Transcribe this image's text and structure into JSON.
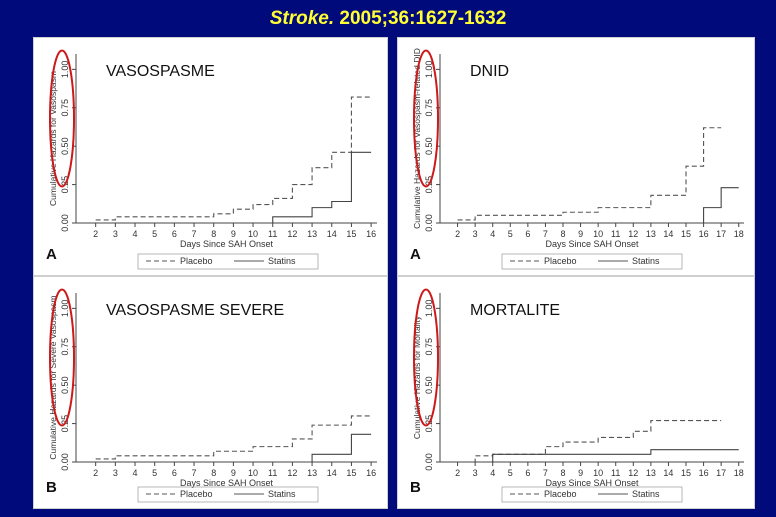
{
  "slide": {
    "citation_journal": "Stroke.",
    "citation_rest": " 2005;36:1627-1632",
    "title_color": "#ffff33",
    "background_color": "#000a7a",
    "highlight_color": "#cc1a1a"
  },
  "chart_data": [
    {
      "type": "line",
      "step": true,
      "overlay_label": "VASOSPASME",
      "panel_letter": "A",
      "xlabel": "Days Since SAH Onset",
      "ylabel": "Cumulative Hazards for Vasospasm",
      "xticks": [
        2,
        3,
        4,
        5,
        6,
        7,
        8,
        9,
        10,
        11,
        12,
        13,
        14,
        15,
        16
      ],
      "yticks": [
        "0.00",
        "0.25",
        "0.50",
        "0.75",
        "1.00"
      ],
      "xlim": [
        1,
        16.3
      ],
      "ylim": [
        0,
        1.1
      ],
      "legend_position": "bottom",
      "series": [
        {
          "name": "Placebo",
          "style": "dashed",
          "x": [
            2,
            3,
            8,
            9,
            10,
            11,
            12,
            13,
            14,
            15,
            16
          ],
          "y": [
            0.02,
            0.04,
            0.06,
            0.09,
            0.12,
            0.16,
            0.25,
            0.36,
            0.46,
            0.82,
            0.82
          ]
        },
        {
          "name": "Statins",
          "style": "solid",
          "x": [
            2,
            11,
            13,
            14,
            15,
            16
          ],
          "y": [
            0.0,
            0.04,
            0.1,
            0.14,
            0.46,
            0.46
          ]
        }
      ]
    },
    {
      "type": "line",
      "step": true,
      "overlay_label": "DNID",
      "panel_letter": "A",
      "xlabel": "Days Since SAH Onset",
      "ylabel": "Cumulative Hazards for Vasospasm-related DID",
      "xticks": [
        2,
        3,
        4,
        5,
        6,
        7,
        8,
        9,
        10,
        11,
        12,
        13,
        14,
        15,
        16,
        17,
        18
      ],
      "yticks": [
        "0.00",
        "0.25",
        "0.50",
        "0.75",
        "1.00"
      ],
      "xlim": [
        1,
        18.3
      ],
      "ylim": [
        0,
        1.1
      ],
      "legend_position": "bottom",
      "series": [
        {
          "name": "Placebo",
          "style": "dashed",
          "x": [
            2,
            3,
            8,
            10,
            13,
            15,
            16,
            17
          ],
          "y": [
            0.02,
            0.05,
            0.07,
            0.1,
            0.18,
            0.37,
            0.62,
            0.62
          ]
        },
        {
          "name": "Statins",
          "style": "solid",
          "x": [
            2,
            16,
            17,
            18
          ],
          "y": [
            0.0,
            0.1,
            0.23,
            0.23
          ]
        }
      ]
    },
    {
      "type": "line",
      "step": true,
      "overlay_label": "VASOSPASME SEVERE",
      "panel_letter": "B",
      "xlabel": "Days Since SAH Onset",
      "ylabel": "Cumulative Hazards for Severe Vasospasm",
      "xticks": [
        2,
        3,
        4,
        5,
        6,
        7,
        8,
        9,
        10,
        11,
        12,
        13,
        14,
        15,
        16
      ],
      "yticks": [
        "0.00",
        "0.25",
        "0.50",
        "0.75",
        "1.00"
      ],
      "xlim": [
        1,
        16.3
      ],
      "ylim": [
        0,
        1.1
      ],
      "legend_position": "bottom",
      "series": [
        {
          "name": "Placebo",
          "style": "dashed",
          "x": [
            2,
            3,
            8,
            10,
            12,
            13,
            15,
            16
          ],
          "y": [
            0.02,
            0.04,
            0.07,
            0.1,
            0.15,
            0.24,
            0.3,
            0.3
          ]
        },
        {
          "name": "Statins",
          "style": "solid",
          "x": [
            2,
            13,
            15,
            16
          ],
          "y": [
            0.0,
            0.05,
            0.18,
            0.18
          ]
        }
      ]
    },
    {
      "type": "line",
      "step": true,
      "overlay_label": "MORTALITE",
      "panel_letter": "B",
      "xlabel": "Days Since SAH Onset",
      "ylabel": "Cumulative Hazards for Mortality",
      "xticks": [
        2,
        3,
        4,
        5,
        6,
        7,
        8,
        9,
        10,
        11,
        12,
        13,
        14,
        15,
        16,
        17,
        18
      ],
      "yticks": [
        "0.00",
        "0.25",
        "0.50",
        "0.75",
        "1.00"
      ],
      "xlim": [
        1,
        18.3
      ],
      "ylim": [
        0,
        1.1
      ],
      "legend_position": "bottom",
      "series": [
        {
          "name": "Placebo",
          "style": "dashed",
          "x": [
            2,
            3,
            4,
            7,
            8,
            10,
            12,
            13,
            17
          ],
          "y": [
            0.0,
            0.04,
            0.05,
            0.1,
            0.13,
            0.16,
            0.2,
            0.27,
            0.27
          ]
        },
        {
          "name": "Statins",
          "style": "solid",
          "x": [
            2,
            4,
            13,
            18
          ],
          "y": [
            0.0,
            0.05,
            0.08,
            0.08
          ]
        }
      ]
    }
  ]
}
